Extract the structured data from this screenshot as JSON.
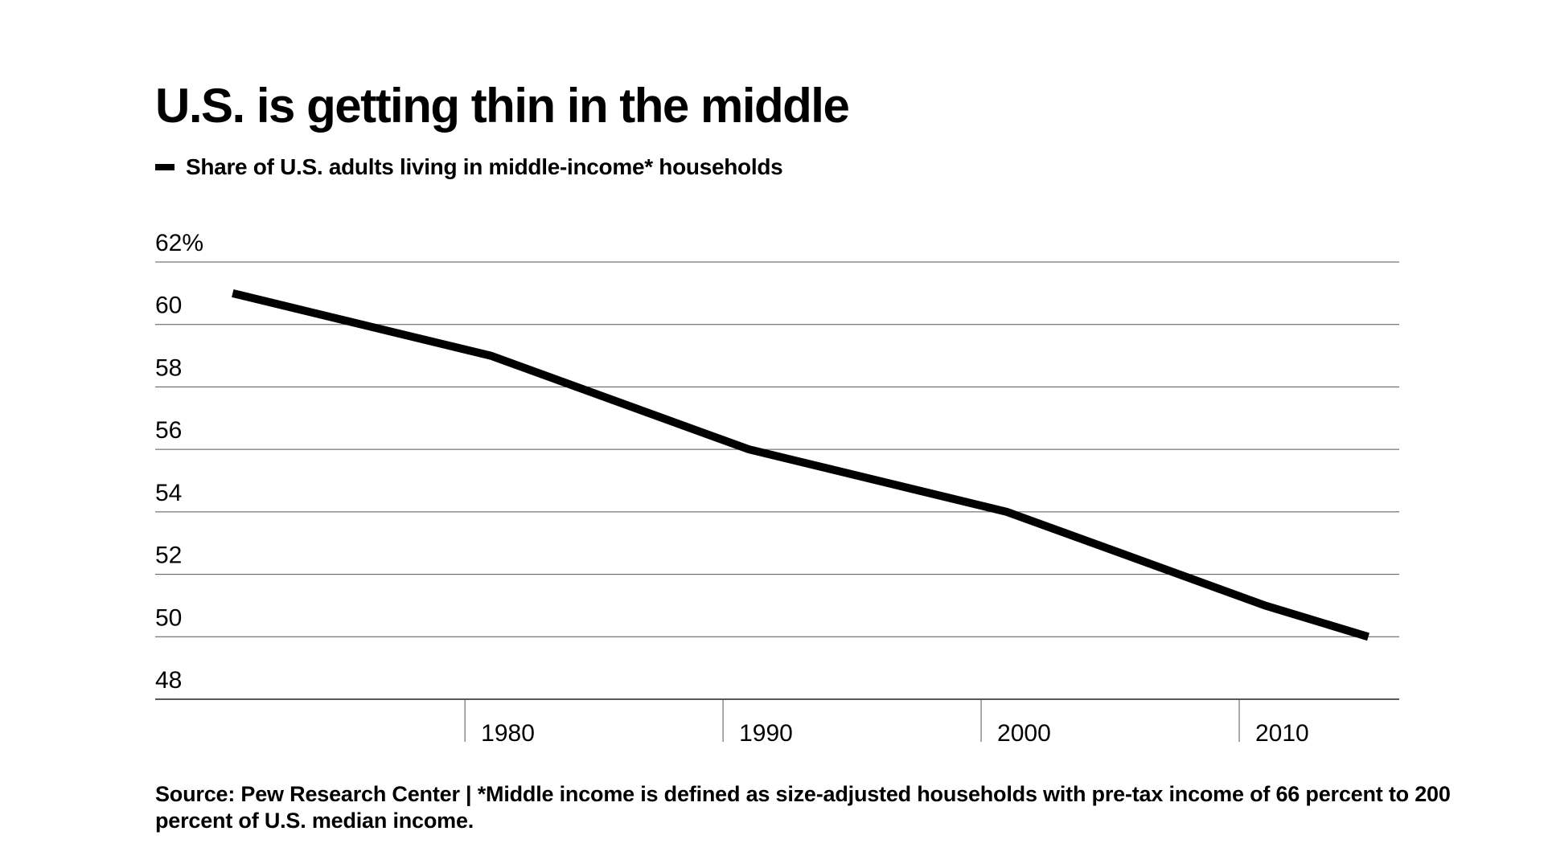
{
  "chart_data": {
    "type": "line",
    "title": "U.S. is getting thin in the middle",
    "legend": {
      "placement": "top-left",
      "entries": [
        "Share of U.S. adults living in middle-income* households"
      ]
    },
    "series": [
      {
        "name": "Share of U.S. adults living in middle-income* households",
        "color": "#000000",
        "x": [
          1971,
          1981,
          1991,
          2001,
          2011,
          2015
        ],
        "values": [
          61,
          59,
          56,
          54,
          51,
          50
        ]
      }
    ],
    "x_axis": {
      "range": [
        1968,
        2016.2
      ],
      "ticks": [
        1980,
        1990,
        2000,
        2010
      ],
      "tick_labels": [
        "1980",
        "1990",
        "2000",
        "2010"
      ]
    },
    "y_axis": {
      "range": [
        48,
        62
      ],
      "ticks": [
        62,
        60,
        58,
        56,
        54,
        52,
        50,
        48
      ],
      "tick_labels": [
        "62%",
        "60",
        "58",
        "56",
        "54",
        "52",
        "50",
        "48"
      ]
    },
    "grid": "horizontal",
    "source_note": "Source: Pew Research Center | *Middle income is defined as size-adjusted households with pre-tax income of 66 percent to 200 percent of U.S. median income."
  }
}
